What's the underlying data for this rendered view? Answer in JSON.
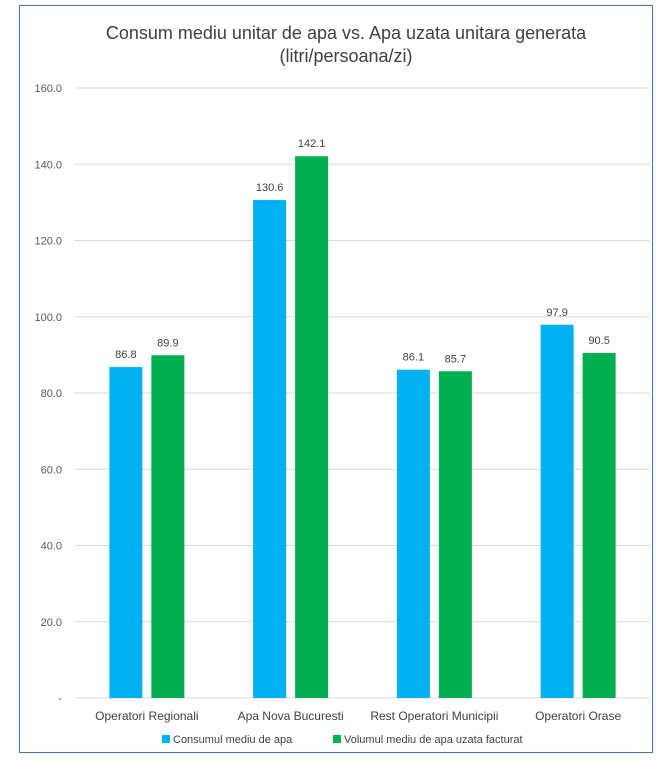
{
  "chart_data": {
    "type": "bar",
    "title": "Consum mediu unitar de apa vs. Apa uzata unitara generata",
    "subtitle": "(litri/persoana/zi)",
    "xlabel": "",
    "ylabel": "",
    "categories": [
      "Operatori Regionali",
      "Apa Nova Bucuresti",
      "Rest Operatori Municipii",
      "Operatori Orase"
    ],
    "series": [
      {
        "name": "Consumul mediu de apa",
        "values": [
          86.8,
          130.6,
          86.1,
          97.9
        ],
        "labels": [
          "86.8",
          "130.6",
          "86.1",
          "97.9"
        ],
        "color": "#00b0f0"
      },
      {
        "name": "Volumul mediu de apa uzata facturat",
        "values": [
          89.9,
          142.1,
          85.7,
          90.5
        ],
        "labels": [
          "89.9",
          "142.1",
          "85.7",
          "90.5"
        ],
        "color": "#00b050"
      }
    ],
    "ylim": [
      0,
      160
    ],
    "yticks": [
      0,
      20,
      40,
      60,
      80,
      100,
      120,
      140,
      160
    ],
    "ytick_labels": [
      "-",
      "20.0",
      "40.0",
      "60.0",
      "80.0",
      "100.0",
      "120.0",
      "140.0",
      "160.0"
    ],
    "grid": true,
    "legend_position": "bottom",
    "colors": {
      "gridline": "#d9d9d9",
      "frame": "#4472c4"
    }
  }
}
